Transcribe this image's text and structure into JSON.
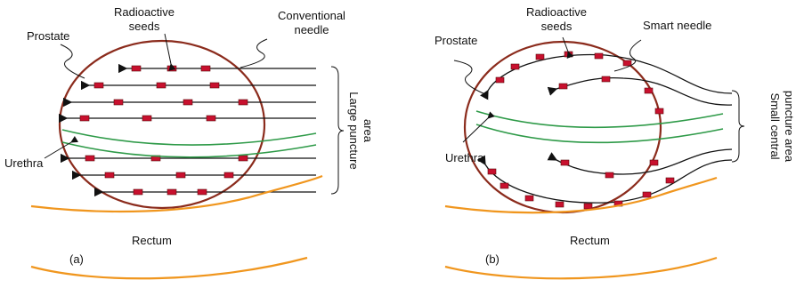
{
  "panels": [
    {
      "label": "(a)",
      "seeds": [
        "Radioactive",
        "seeds"
      ],
      "needle": [
        "Conventional",
        "needle"
      ],
      "prostate": "Prostate",
      "puncture": [
        "Large puncture",
        "area"
      ],
      "urethra": "Urethra",
      "rectum": "Rectum"
    },
    {
      "label": "(b)",
      "seeds": [
        "Radioactive",
        "seeds"
      ],
      "needle": "Smart needle",
      "prostate": "Prostate",
      "puncture": [
        "Small central",
        "puncture area"
      ],
      "urethra": "Urethra",
      "rectum": "Rectum"
    }
  ]
}
